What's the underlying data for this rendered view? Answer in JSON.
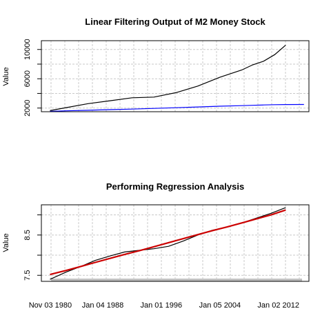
{
  "chart_data": [
    {
      "type": "line",
      "title": "Linear Filtering Output of  M2 Money Stock",
      "xlabel": "",
      "ylabel": "Value",
      "ylim": [
        1500,
        11200
      ],
      "yticks": [
        "2000",
        "6000",
        "10000"
      ],
      "ytick_values": [
        2000,
        6000,
        10000
      ],
      "grid": true,
      "x": [
        1980.8,
        1983,
        1986,
        1989,
        1992,
        1995,
        1998,
        2001,
        2004,
        2007,
        2008.5,
        2010,
        2011.5,
        2013,
        2015.5
      ],
      "series": [
        {
          "color": "#000000",
          "values": [
            1650,
            2060,
            2600,
            3000,
            3400,
            3500,
            4100,
            5000,
            6200,
            7200,
            7900,
            8400,
            9300,
            10600,
            null
          ]
        },
        {
          "color": "#0000ff",
          "values": [
            1550,
            1620,
            1700,
            1780,
            1860,
            1950,
            2050,
            2150,
            2250,
            2330,
            2380,
            2420,
            2460,
            2480,
            2490
          ]
        }
      ]
    },
    {
      "type": "line",
      "title": "Performing Regression Analysis",
      "xlabel": "",
      "ylabel": "Value",
      "ylim": [
        7.35,
        9.25
      ],
      "yticks": [
        "7.5",
        "8.5"
      ],
      "ytick_values": [
        7.5,
        8.5
      ],
      "extra_ytick_values": [
        8.0,
        9.0
      ],
      "grid": true,
      "xtick_labels": [
        "Nov 03 1980",
        "Jan 04 1988",
        "Jan 01 1996",
        "Jan 05 2004",
        "Jan 02 2012"
      ],
      "xtick_values": [
        1980.84,
        1988.01,
        1996.0,
        2004.01,
        2012.0
      ],
      "x": [
        1980.8,
        1983,
        1985,
        1987,
        1989,
        1991,
        1993,
        1995,
        1997,
        1999,
        2001,
        2003,
        2005,
        2007,
        2009,
        2011,
        2013
      ],
      "series": [
        {
          "color": "#000000",
          "values": [
            7.4,
            7.58,
            7.72,
            7.87,
            7.98,
            8.08,
            8.12,
            8.16,
            8.22,
            8.35,
            8.5,
            8.62,
            8.7,
            8.8,
            8.92,
            9.04,
            9.18
          ]
        },
        {
          "color": "#cc0000",
          "values": [
            7.52,
            7.62,
            7.72,
            7.82,
            7.92,
            8.02,
            8.11,
            8.21,
            8.31,
            8.41,
            8.51,
            8.61,
            8.7,
            8.8,
            8.9,
            9.0,
            9.12
          ]
        }
      ]
    }
  ]
}
